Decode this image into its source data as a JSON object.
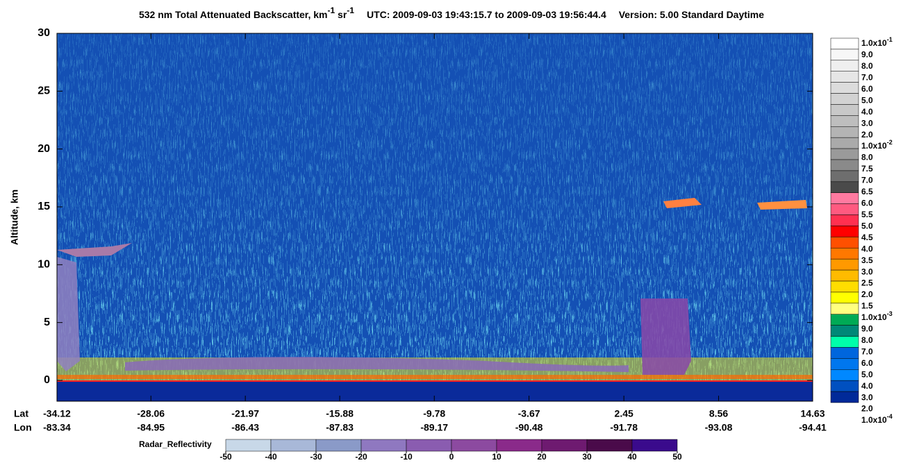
{
  "chart_data": {
    "type": "curtain",
    "title": {
      "main": "532 nm Total Attenuated Backscatter, km",
      "sup1": "-1",
      "mid": " sr",
      "sup2": "-1",
      "utc": "UTC:  2009-09-03 19:43:15.7  to  2009-09-03 19:56:44.4",
      "version": "Version: 5.00  Standard  Daytime"
    },
    "y_label": "Altitude, km",
    "ylim": [
      -1.8,
      30
    ],
    "yticks": [
      0,
      5,
      10,
      15,
      20,
      25,
      30
    ],
    "x_row_labels": [
      "Lat",
      "Lon"
    ],
    "xlim": [
      -34.12,
      14.63
    ],
    "xticks": [
      {
        "lat": -34.12,
        "lon": -83.34
      },
      {
        "lat": -28.06,
        "lon": -84.95
      },
      {
        "lat": -21.97,
        "lon": -86.43
      },
      {
        "lat": -15.88,
        "lon": -87.83
      },
      {
        "lat": -9.78,
        "lon": -89.17
      },
      {
        "lat": -3.67,
        "lon": -90.48
      },
      {
        "lat": 2.45,
        "lon": -91.78
      },
      {
        "lat": 8.56,
        "lon": -93.08
      },
      {
        "lat": 14.63,
        "lon": -94.41
      }
    ],
    "backscatter_scale": {
      "labels": [
        {
          "base": "1.0x10",
          "exp": "-1"
        },
        "9.0",
        "8.0",
        "7.0",
        "6.0",
        "5.0",
        "4.0",
        "3.0",
        "2.0",
        {
          "base": "1.0x10",
          "exp": "-2"
        },
        "8.0",
        "7.5",
        "7.0",
        "6.5",
        "6.0",
        "5.5",
        "5.0",
        "4.5",
        "4.0",
        "3.5",
        "3.0",
        "2.5",
        "2.0",
        "1.5",
        {
          "base": "1.0x10",
          "exp": "-3"
        },
        "9.0",
        "8.0",
        "7.0",
        "6.0",
        "5.0",
        "4.0",
        "3.0",
        "2.0",
        {
          "base": "1.0x10",
          "exp": "-4"
        }
      ],
      "colors": [
        "#ffffff",
        "#f7f7f7",
        "#efefef",
        "#e6e6e6",
        "#dcdcdc",
        "#d2d2d2",
        "#c8c8c8",
        "#bebebe",
        "#b4b4b4",
        "#aaaaaa",
        "#9a9a9a",
        "#8a8a8a",
        "#6e6e6e",
        "#4a4a4a",
        "#ff7aa0",
        "#ff5a80",
        "#ff3050",
        "#ff0000",
        "#ff5000",
        "#ff7800",
        "#ff9900",
        "#ffbb00",
        "#ffdd00",
        "#ffff00",
        "#ffff80",
        "#00aa55",
        "#008877",
        "#00ffaa",
        "#0066dd",
        "#0077ee",
        "#0088ff",
        "#0050c0",
        "#002a99"
      ]
    },
    "radar_scale": {
      "label": "Radar_Reflectivity",
      "clim": [
        -50,
        50
      ],
      "ticks": [
        -50,
        -40,
        -30,
        -20,
        -10,
        0,
        10,
        20,
        30,
        40,
        50
      ],
      "colors": [
        "#c8d8e8",
        "#a8b8d8",
        "#8a9ac8",
        "#8f78c0",
        "#8a5cb0",
        "#8c4aa0",
        "#8a2a8a",
        "#6e1a70",
        "#4a0a4a",
        "#3a0a8c"
      ]
    }
  }
}
